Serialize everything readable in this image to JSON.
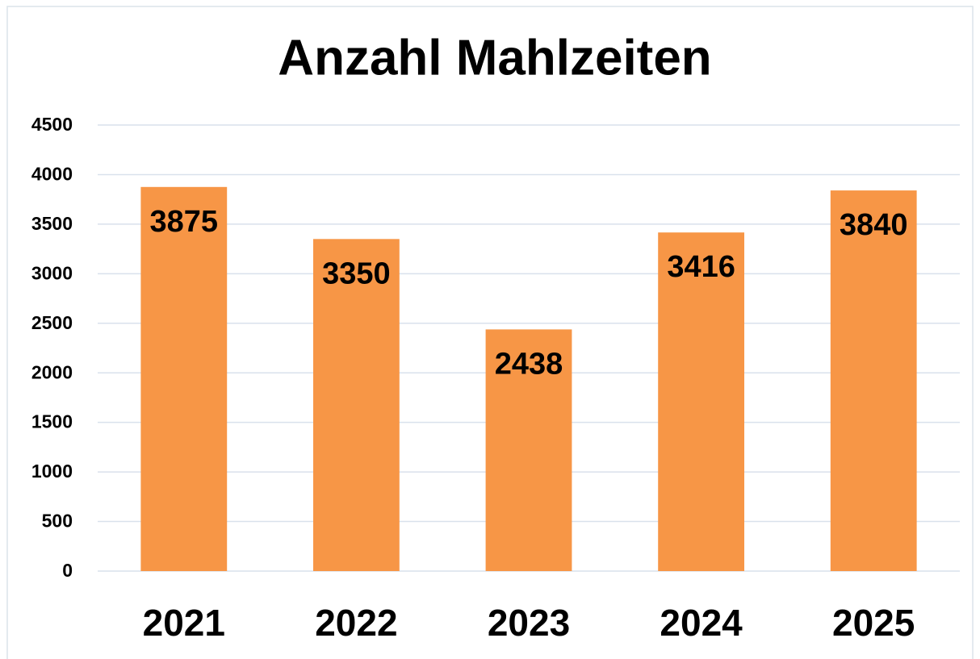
{
  "chart_data": {
    "type": "bar",
    "title": "Anzahl Mahlzeiten",
    "categories": [
      "2021",
      "2022",
      "2023",
      "2024",
      "2025"
    ],
    "values": [
      3875,
      3350,
      2438,
      3416,
      3840
    ],
    "color": "#f79646",
    "ylim": [
      0,
      4500
    ],
    "yticks": [
      0,
      500,
      1000,
      1500,
      2000,
      2500,
      3000,
      3500,
      4000,
      4500
    ],
    "grid": true
  }
}
